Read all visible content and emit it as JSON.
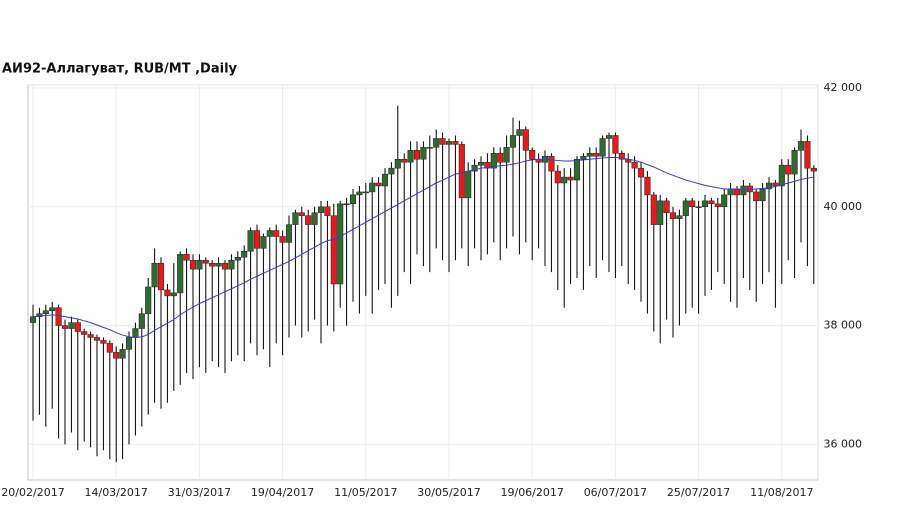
{
  "chart_data": {
    "type": "candlestick",
    "title": "АИ92-Аллагуват,  RUB/MT ,Daily",
    "up_color": "#2f6b2f",
    "down_color": "#e31c1c",
    "grid": true,
    "ylim": [
      35400,
      42050
    ],
    "yticks": [
      {
        "value": 36000,
        "label": "36 000"
      },
      {
        "value": 38000,
        "label": "38 000"
      },
      {
        "value": 40000,
        "label": "40 000"
      },
      {
        "value": 42000,
        "label": "42 000"
      }
    ],
    "categories": [
      "20/02/2017",
      null,
      null,
      null,
      null,
      null,
      null,
      null,
      null,
      null,
      null,
      null,
      null,
      "14/03/2017",
      null,
      null,
      null,
      null,
      null,
      null,
      null,
      null,
      null,
      null,
      null,
      null,
      "31/03/2017",
      null,
      null,
      null,
      null,
      null,
      null,
      null,
      null,
      null,
      null,
      null,
      null,
      "19/04/2017",
      null,
      null,
      null,
      null,
      null,
      null,
      null,
      null,
      null,
      null,
      null,
      null,
      "11/05/2017",
      null,
      null,
      null,
      null,
      null,
      null,
      null,
      null,
      null,
      null,
      null,
      null,
      "30/05/2017",
      null,
      null,
      null,
      null,
      null,
      null,
      null,
      null,
      null,
      null,
      null,
      null,
      "19/06/2017",
      null,
      null,
      null,
      null,
      null,
      null,
      null,
      null,
      null,
      null,
      null,
      null,
      "06/07/2017",
      null,
      null,
      null,
      null,
      null,
      null,
      null,
      null,
      null,
      null,
      null,
      null,
      "25/07/2017",
      null,
      null,
      null,
      null,
      null,
      null,
      null,
      null,
      null,
      null,
      null,
      null,
      "11/08/2017",
      null,
      null,
      null,
      null,
      null
    ],
    "open": [
      38050,
      38150,
      38200,
      38250,
      38300,
      38000,
      37950,
      38050,
      37900,
      37850,
      37800,
      37750,
      37700,
      37550,
      37450,
      37600,
      37800,
      37950,
      38200,
      38650,
      39050,
      38600,
      38500,
      38550,
      39200,
      39100,
      38950,
      39100,
      39050,
      39000,
      39050,
      38950,
      39100,
      39150,
      39250,
      39600,
      39300,
      39500,
      39600,
      39500,
      39400,
      39700,
      39900,
      39850,
      39700,
      39900,
      40000,
      39850,
      38700,
      40050,
      40050,
      40200,
      40250,
      40250,
      40400,
      40350,
      40550,
      40650,
      40800,
      40750,
      40950,
      40800,
      41000,
      41000,
      41150,
      41050,
      41100,
      41050,
      40150,
      40600,
      40700,
      40750,
      40650,
      40900,
      40750,
      41000,
      41200,
      41300,
      40950,
      40800,
      40750,
      40850,
      40600,
      40400,
      40500,
      40450,
      40800,
      40850,
      40900,
      40850,
      41150,
      41200,
      40900,
      40800,
      40750,
      40650,
      40500,
      40200,
      39700,
      40100,
      39900,
      39800,
      39850,
      40100,
      40000,
      40000,
      40100,
      40050,
      40000,
      40200,
      40300,
      40200,
      40350,
      40250,
      40100,
      40300,
      40400,
      40350,
      40700,
      40550,
      40950,
      41100,
      40650
    ],
    "high": [
      38350,
      38300,
      38350,
      38400,
      38350,
      38100,
      38150,
      38100,
      37950,
      37900,
      37850,
      37800,
      37750,
      37650,
      37700,
      37900,
      38050,
      38300,
      38800,
      39300,
      39150,
      38700,
      39050,
      39250,
      39300,
      39200,
      39200,
      39150,
      39100,
      39150,
      39100,
      39200,
      39250,
      39350,
      39650,
      39700,
      39550,
      39650,
      39700,
      39600,
      39850,
      39950,
      40000,
      39950,
      40000,
      40100,
      40100,
      40050,
      40100,
      40150,
      40300,
      40350,
      40400,
      40500,
      40500,
      40650,
      40750,
      41700,
      40900,
      41100,
      41100,
      41100,
      41200,
      41300,
      41250,
      41150,
      41200,
      41100,
      40750,
      40800,
      40850,
      40900,
      41000,
      41000,
      41200,
      41500,
      41450,
      41350,
      41000,
      40900,
      40950,
      40900,
      40700,
      40650,
      40650,
      40850,
      40900,
      41000,
      41000,
      41200,
      41250,
      41250,
      40950,
      40900,
      40850,
      40750,
      40600,
      40250,
      40200,
      40150,
      40000,
      39950,
      40150,
      40150,
      40100,
      40200,
      40150,
      40150,
      40300,
      40400,
      40350,
      40450,
      40400,
      40300,
      40400,
      40500,
      40450,
      40800,
      40800,
      41000,
      41300,
      41200,
      40700
    ],
    "low": [
      36400,
      36500,
      36300,
      36600,
      36100,
      36000,
      36200,
      35900,
      36050,
      35950,
      35800,
      35900,
      35750,
      35700,
      35750,
      36000,
      36150,
      36300,
      36500,
      36700,
      36600,
      36700,
      36900,
      37000,
      37200,
      37100,
      37300,
      37200,
      37400,
      37300,
      37200,
      37400,
      37500,
      37400,
      37700,
      37500,
      37600,
      37300,
      37700,
      37500,
      37800,
      38000,
      37800,
      37900,
      38100,
      37700,
      38000,
      37900,
      38300,
      38000,
      38400,
      38200,
      38500,
      38200,
      38600,
      38700,
      38300,
      38500,
      38900,
      38700,
      39200,
      39000,
      38900,
      39300,
      39100,
      38900,
      39100,
      39300,
      39000,
      39300,
      39100,
      39200,
      39400,
      39100,
      39300,
      39500,
      39200,
      39400,
      39100,
      39300,
      39000,
      38900,
      38600,
      38300,
      38700,
      38800,
      38600,
      39000,
      38800,
      39100,
      38900,
      38800,
      39000,
      38700,
      38600,
      38400,
      38200,
      37900,
      37700,
      38100,
      37800,
      38000,
      38200,
      38300,
      38200,
      38500,
      38600,
      38900,
      38700,
      38400,
      38300,
      38800,
      38600,
      38400,
      38700,
      38900,
      38300,
      38700,
      39100,
      38800,
      39400,
      39000,
      38700
    ],
    "close": [
      38150,
      38200,
      38250,
      38300,
      38000,
      37950,
      38050,
      37900,
      37850,
      37800,
      37750,
      37700,
      37550,
      37450,
      37600,
      37800,
      37950,
      38200,
      38650,
      39050,
      38600,
      38500,
      38550,
      39200,
      39100,
      38950,
      39100,
      39050,
      39000,
      39050,
      38950,
      39100,
      39150,
      39250,
      39600,
      39300,
      39500,
      39600,
      39500,
      39400,
      39700,
      39900,
      39850,
      39700,
      39900,
      40000,
      39850,
      38700,
      40050,
      40050,
      40200,
      40250,
      40250,
      40400,
      40350,
      40550,
      40650,
      40800,
      40750,
      40950,
      40800,
      41000,
      41000,
      41150,
      41050,
      41100,
      41050,
      40150,
      40600,
      40700,
      40750,
      40650,
      40900,
      40750,
      41000,
      41200,
      41300,
      40950,
      40800,
      40750,
      40850,
      40600,
      40400,
      40500,
      40450,
      40800,
      40850,
      40900,
      40850,
      41150,
      41200,
      40900,
      40800,
      40750,
      40650,
      40500,
      40200,
      39700,
      40100,
      39900,
      39800,
      39850,
      40100,
      40000,
      40000,
      40100,
      40050,
      40000,
      40200,
      40300,
      40200,
      40350,
      40250,
      40100,
      40300,
      40400,
      40350,
      40700,
      40550,
      40950,
      41100,
      40650,
      40600
    ],
    "moving_average": {
      "color": "#3a3ad0",
      "values": [
        38150,
        38160,
        38170,
        38180,
        38170,
        38150,
        38130,
        38110,
        38080,
        38050,
        38010,
        37970,
        37930,
        37880,
        37840,
        37810,
        37800,
        37810,
        37850,
        37920,
        37980,
        38040,
        38100,
        38180,
        38250,
        38310,
        38370,
        38420,
        38470,
        38520,
        38570,
        38620,
        38670,
        38720,
        38780,
        38830,
        38880,
        38930,
        38980,
        39030,
        39080,
        39140,
        39200,
        39260,
        39320,
        39380,
        39430,
        39450,
        39500,
        39560,
        39620,
        39680,
        39740,
        39800,
        39860,
        39920,
        39980,
        40040,
        40100,
        40160,
        40220,
        40280,
        40340,
        40400,
        40450,
        40500,
        40550,
        40570,
        40600,
        40620,
        40650,
        40660,
        40680,
        40690,
        40700,
        40720,
        40740,
        40770,
        40790,
        40800,
        40800,
        40790,
        40780,
        40770,
        40770,
        40780,
        40790,
        40800,
        40810,
        40820,
        40830,
        40830,
        40820,
        40800,
        40780,
        40750,
        40710,
        40670,
        40620,
        40570,
        40530,
        40490,
        40450,
        40420,
        40390,
        40360,
        40340,
        40320,
        40300,
        40300,
        40300,
        40290,
        40290,
        40300,
        40310,
        40320,
        40340,
        40370,
        40400,
        40430,
        40460,
        40480,
        40500
      ]
    }
  }
}
